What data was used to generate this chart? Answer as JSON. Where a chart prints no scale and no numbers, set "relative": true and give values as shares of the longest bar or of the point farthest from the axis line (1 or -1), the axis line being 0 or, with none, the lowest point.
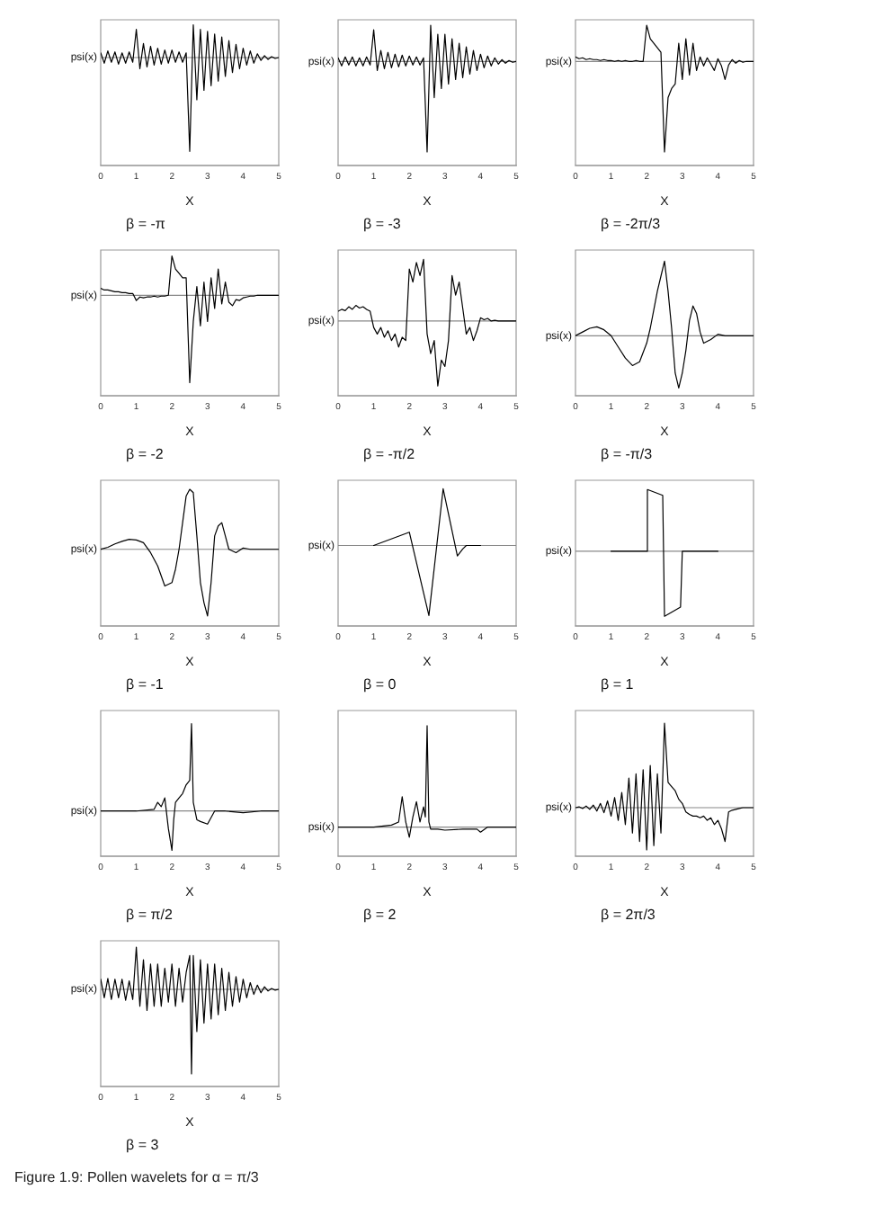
{
  "chart_data": [
    {
      "type": "line",
      "title": "β = -π",
      "xlabel": "X",
      "ylabel": "psi(x)",
      "relative": true,
      "xlim": [
        0,
        5
      ],
      "xticks": [
        0,
        1,
        2,
        3,
        4,
        5
      ],
      "color": "#000000",
      "x": [
        0,
        0.1,
        0.2,
        0.3,
        0.4,
        0.5,
        0.6,
        0.7,
        0.8,
        0.9,
        1,
        1.1,
        1.2,
        1.3,
        1.4,
        1.5,
        1.6,
        1.7,
        1.8,
        1.9,
        2,
        2.1,
        2.2,
        2.3,
        2.4,
        2.5,
        2.6,
        2.7,
        2.8,
        2.9,
        3,
        3.1,
        3.2,
        3.3,
        3.4,
        3.5,
        3.6,
        3.7,
        3.8,
        3.9,
        4,
        4.1,
        4.2,
        4.3,
        4.4,
        4.5,
        4.6,
        4.7,
        4.8,
        4.9,
        5
      ],
      "values": [
        0.05,
        -0.06,
        0.07,
        -0.05,
        0.06,
        -0.07,
        0.05,
        -0.06,
        0.06,
        -0.05,
        0.3,
        -0.12,
        0.15,
        -0.1,
        0.12,
        -0.08,
        0.1,
        -0.07,
        0.08,
        -0.06,
        0.08,
        -0.05,
        0.06,
        -0.05,
        0.05,
        -1,
        0.35,
        -0.45,
        0.3,
        -0.35,
        0.28,
        -0.3,
        0.25,
        -0.25,
        0.22,
        -0.2,
        0.18,
        -0.16,
        0.14,
        -0.12,
        0.1,
        -0.08,
        0.07,
        -0.06,
        0.04,
        -0.03,
        0.02,
        -0.02,
        0.01,
        -0.01,
        0
      ]
    },
    {
      "type": "line",
      "title": "β = -3",
      "xlabel": "X",
      "ylabel": "psi(x)",
      "relative": true,
      "xlim": [
        0,
        5
      ],
      "xticks": [
        0,
        1,
        2,
        3,
        4,
        5
      ],
      "color": "#000000",
      "x": [
        0,
        0.1,
        0.2,
        0.3,
        0.4,
        0.5,
        0.6,
        0.7,
        0.8,
        0.9,
        1,
        1.1,
        1.2,
        1.3,
        1.4,
        1.5,
        1.6,
        1.7,
        1.8,
        1.9,
        2,
        2.1,
        2.2,
        2.3,
        2.4,
        2.5,
        2.6,
        2.7,
        2.8,
        2.9,
        3,
        3.1,
        3.2,
        3.3,
        3.4,
        3.5,
        3.6,
        3.7,
        3.8,
        3.9,
        4,
        4.1,
        4.2,
        4.3,
        4.4,
        4.5,
        4.6,
        4.7,
        4.8,
        4.9,
        5
      ],
      "values": [
        0.04,
        -0.05,
        0.05,
        -0.04,
        0.05,
        -0.05,
        0.04,
        -0.05,
        0.05,
        -0.04,
        0.35,
        -0.1,
        0.12,
        -0.08,
        0.1,
        -0.07,
        0.08,
        -0.06,
        0.07,
        -0.05,
        0.06,
        -0.04,
        0.05,
        -0.04,
        0.04,
        -1,
        0.4,
        -0.4,
        0.3,
        -0.3,
        0.3,
        -0.25,
        0.25,
        -0.2,
        0.2,
        -0.18,
        0.16,
        -0.14,
        0.12,
        -0.1,
        0.08,
        -0.07,
        0.06,
        -0.05,
        0.04,
        -0.03,
        0.02,
        -0.02,
        0.01,
        -0.01,
        0
      ]
    },
    {
      "type": "line",
      "title": "β = -2π/3",
      "xlabel": "X",
      "ylabel": "psi(x)",
      "relative": true,
      "xlim": [
        0,
        5
      ],
      "xticks": [
        0,
        1,
        2,
        3,
        4,
        5
      ],
      "color": "#000000",
      "x": [
        0,
        0.1,
        0.2,
        0.3,
        0.4,
        0.5,
        0.6,
        0.7,
        0.8,
        0.9,
        1,
        1.1,
        1.2,
        1.3,
        1.4,
        1.5,
        1.6,
        1.7,
        1.8,
        1.9,
        2,
        2.1,
        2.2,
        2.3,
        2.4,
        2.5,
        2.6,
        2.7,
        2.8,
        2.9,
        3,
        3.1,
        3.2,
        3.3,
        3.4,
        3.5,
        3.6,
        3.7,
        3.8,
        3.9,
        4,
        4.1,
        4.2,
        4.3,
        4.4,
        4.5,
        4.6,
        4.7,
        4.8,
        4.9,
        5
      ],
      "values": [
        0.05,
        0.03,
        0.04,
        0.02,
        0.03,
        0.02,
        0.02,
        0.01,
        0.02,
        0.01,
        0.01,
        0,
        0.01,
        0,
        0.01,
        0,
        0,
        0.01,
        0,
        0,
        0.4,
        0.25,
        0.2,
        0.15,
        0.1,
        -1,
        -0.4,
        -0.3,
        -0.25,
        0.2,
        -0.2,
        0.25,
        -0.15,
        0.2,
        -0.1,
        0.05,
        -0.05,
        0.04,
        -0.03,
        -0.1,
        0.03,
        -0.05,
        -0.2,
        -0.04,
        0.02,
        -0.02,
        0.01,
        -0.01,
        0,
        0,
        0
      ]
    },
    {
      "type": "line",
      "title": "β = -2",
      "xlabel": "X",
      "ylabel": "psi(x)",
      "relative": true,
      "xlim": [
        0,
        5
      ],
      "xticks": [
        0,
        1,
        2,
        3,
        4,
        5
      ],
      "color": "#000000",
      "x": [
        0,
        0.1,
        0.2,
        0.3,
        0.4,
        0.5,
        0.6,
        0.7,
        0.8,
        0.9,
        1,
        1.1,
        1.2,
        1.3,
        1.4,
        1.5,
        1.6,
        1.7,
        1.8,
        1.9,
        2,
        2.1,
        2.2,
        2.3,
        2.4,
        2.5,
        2.6,
        2.7,
        2.8,
        2.9,
        3,
        3.1,
        3.2,
        3.3,
        3.4,
        3.5,
        3.6,
        3.7,
        3.8,
        3.9,
        4,
        4.1,
        4.2,
        4.3,
        4.4,
        4.5,
        4.6,
        4.7,
        4.8,
        4.9,
        5
      ],
      "values": [
        0.08,
        0.06,
        0.06,
        0.05,
        0.04,
        0.04,
        0.03,
        0.03,
        0.02,
        0.02,
        -0.06,
        -0.02,
        -0.03,
        -0.02,
        -0.02,
        -0.01,
        -0.02,
        -0.01,
        -0.01,
        0,
        0.45,
        0.3,
        0.25,
        0.2,
        0.2,
        -1,
        -0.3,
        0.1,
        -0.35,
        0.15,
        -0.3,
        0.2,
        -0.15,
        0.3,
        -0.1,
        0.15,
        -0.08,
        -0.12,
        -0.05,
        -0.06,
        -0.03,
        -0.02,
        -0.01,
        -0.01,
        0,
        0,
        0,
        0,
        0,
        0,
        0
      ]
    },
    {
      "type": "line",
      "title": "β = -π/2",
      "xlabel": "X",
      "ylabel": "psi(x)",
      "relative": true,
      "xlim": [
        0,
        5
      ],
      "xticks": [
        0,
        1,
        2,
        3,
        4,
        5
      ],
      "color": "#000000",
      "x": [
        0,
        0.1,
        0.2,
        0.3,
        0.4,
        0.5,
        0.6,
        0.7,
        0.8,
        0.9,
        1,
        1.1,
        1.2,
        1.3,
        1.4,
        1.5,
        1.6,
        1.7,
        1.8,
        1.9,
        2,
        2.1,
        2.2,
        2.3,
        2.4,
        2.5,
        2.6,
        2.7,
        2.8,
        2.9,
        3,
        3.1,
        3.2,
        3.3,
        3.4,
        3.5,
        3.6,
        3.7,
        3.8,
        3.9,
        4,
        4.1,
        4.2,
        4.3,
        4.4,
        4.5,
        4.6,
        4.7,
        4.8,
        4.9,
        5
      ],
      "values": [
        0.15,
        0.18,
        0.16,
        0.22,
        0.18,
        0.24,
        0.2,
        0.22,
        0.18,
        0.15,
        -0.1,
        -0.2,
        -0.1,
        -0.25,
        -0.15,
        -0.3,
        -0.2,
        -0.4,
        -0.25,
        -0.3,
        0.8,
        0.6,
        0.9,
        0.7,
        0.95,
        -0.2,
        -0.5,
        -0.3,
        -1,
        -0.6,
        -0.7,
        -0.3,
        0.7,
        0.4,
        0.6,
        0.2,
        -0.2,
        -0.1,
        -0.3,
        -0.15,
        0.05,
        0.02,
        0.04,
        0,
        0.01,
        0,
        0,
        0,
        0,
        0,
        0
      ]
    },
    {
      "type": "line",
      "title": "β = -π/3",
      "xlabel": "X",
      "ylabel": "psi(x)",
      "relative": true,
      "xlim": [
        0,
        5
      ],
      "xticks": [
        0,
        1,
        2,
        3,
        4,
        5
      ],
      "color": "#000000",
      "x": [
        0,
        0.2,
        0.4,
        0.6,
        0.8,
        1,
        1.2,
        1.4,
        1.6,
        1.8,
        2,
        2.1,
        2.2,
        2.3,
        2.4,
        2.5,
        2.6,
        2.7,
        2.8,
        2.9,
        3,
        3.1,
        3.2,
        3.3,
        3.4,
        3.5,
        3.6,
        3.8,
        4,
        4.2,
        4.5,
        5
      ],
      "values": [
        0,
        0.05,
        0.1,
        0.12,
        0.08,
        0,
        -0.15,
        -0.3,
        -0.4,
        -0.35,
        -0.1,
        0.1,
        0.35,
        0.6,
        0.8,
        1,
        0.6,
        0.1,
        -0.5,
        -0.7,
        -0.5,
        -0.2,
        0.2,
        0.4,
        0.3,
        0.05,
        -0.1,
        -0.05,
        0.02,
        0,
        0,
        0
      ]
    },
    {
      "type": "line",
      "title": "β = -1",
      "xlabel": "X",
      "ylabel": "psi(x)",
      "relative": true,
      "xlim": [
        0,
        5
      ],
      "xticks": [
        0,
        1,
        2,
        3,
        4,
        5
      ],
      "color": "#000000",
      "x": [
        0,
        0.2,
        0.4,
        0.6,
        0.8,
        1,
        1.2,
        1.4,
        1.6,
        1.8,
        2,
        2.1,
        2.2,
        2.3,
        2.4,
        2.5,
        2.6,
        2.7,
        2.8,
        2.9,
        3,
        3.1,
        3.2,
        3.3,
        3.4,
        3.5,
        3.6,
        3.8,
        4,
        4.2,
        4.5,
        5
      ],
      "values": [
        0,
        0.03,
        0.08,
        0.12,
        0.15,
        0.14,
        0.1,
        -0.05,
        -0.25,
        -0.55,
        -0.5,
        -0.3,
        0,
        0.4,
        0.8,
        0.9,
        0.85,
        0.2,
        -0.5,
        -0.8,
        -1,
        -0.5,
        0.2,
        0.35,
        0.4,
        0.2,
        0,
        -0.05,
        0.02,
        0,
        0,
        0
      ]
    },
    {
      "type": "line",
      "title": "β = 0",
      "xlabel": "X",
      "ylabel": "psi(x)",
      "relative": true,
      "xlim": [
        0,
        5
      ],
      "xticks": [
        0,
        1,
        2,
        3,
        4,
        5
      ],
      "color": "#000000",
      "x": [
        1,
        2,
        2.55,
        2.95,
        3.35,
        3.5,
        3.6,
        4
      ],
      "values": [
        0,
        0.19,
        -1,
        0.81,
        -0.15,
        -0.05,
        0,
        0
      ]
    },
    {
      "type": "line",
      "title": "β = 1",
      "xlabel": "X",
      "ylabel": "psi(x)",
      "relative": true,
      "xlim": [
        0,
        5
      ],
      "xticks": [
        0,
        1,
        2,
        3,
        4,
        5
      ],
      "color": "#000000",
      "x": [
        1,
        2,
        2.02,
        2.45,
        2.5,
        2.95,
        3,
        4
      ],
      "values": [
        0,
        0,
        0.95,
        0.86,
        -1,
        -0.86,
        0,
        0
      ]
    },
    {
      "type": "line",
      "title": "β = π/2",
      "xlabel": "X",
      "ylabel": "psi(x)",
      "relative": true,
      "xlim": [
        0,
        5
      ],
      "xticks": [
        0,
        1,
        2,
        3,
        4,
        5
      ],
      "color": "#000000",
      "x": [
        0,
        1,
        1.5,
        1.6,
        1.7,
        1.8,
        1.9,
        2,
        2.05,
        2.1,
        2.2,
        2.3,
        2.4,
        2.5,
        2.55,
        2.6,
        2.7,
        2.8,
        3,
        3.2,
        3.5,
        4,
        4.5,
        5
      ],
      "values": [
        0,
        0,
        0.02,
        0.1,
        0.05,
        0.15,
        -0.2,
        -0.45,
        -0.1,
        0.1,
        0.15,
        0.2,
        0.3,
        0.35,
        1,
        0.1,
        -0.1,
        -0.12,
        -0.15,
        0,
        0,
        -0.02,
        0,
        0
      ]
    },
    {
      "type": "line",
      "title": "β = 2",
      "xlabel": "X",
      "ylabel": "psi(x)",
      "relative": true,
      "xlim": [
        0,
        5
      ],
      "xticks": [
        0,
        1,
        2,
        3,
        4,
        5
      ],
      "color": "#000000",
      "x": [
        0,
        1,
        1.5,
        1.7,
        1.8,
        1.9,
        2,
        2.1,
        2.2,
        2.3,
        2.4,
        2.45,
        2.5,
        2.55,
        2.6,
        2.8,
        3,
        3.5,
        3.9,
        4,
        4.2,
        5
      ],
      "values": [
        0,
        0,
        0.02,
        0.05,
        0.3,
        0.05,
        -0.1,
        0.1,
        0.25,
        0.05,
        0.2,
        0.1,
        1,
        0.05,
        -0.02,
        -0.02,
        -0.03,
        -0.02,
        -0.02,
        -0.05,
        0,
        0
      ]
    },
    {
      "type": "line",
      "title": "β = 2π/3",
      "xlabel": "X",
      "ylabel": "psi(x)",
      "relative": true,
      "xlim": [
        0,
        5
      ],
      "xticks": [
        0,
        1,
        2,
        3,
        4,
        5
      ],
      "color": "#000000",
      "x": [
        0,
        0.1,
        0.2,
        0.3,
        0.4,
        0.5,
        0.6,
        0.7,
        0.8,
        0.9,
        1,
        1.1,
        1.2,
        1.3,
        1.4,
        1.5,
        1.6,
        1.7,
        1.8,
        1.9,
        2,
        2.1,
        2.2,
        2.3,
        2.4,
        2.5,
        2.6,
        2.7,
        2.8,
        2.9,
        3,
        3.1,
        3.2,
        3.3,
        3.4,
        3.5,
        3.6,
        3.7,
        3.8,
        3.9,
        4,
        4.1,
        4.2,
        4.3,
        4.4,
        4.5,
        4.6,
        4.7,
        4.8,
        4.9,
        5
      ],
      "values": [
        0,
        0.01,
        -0.01,
        0.02,
        -0.02,
        0.03,
        -0.04,
        0.05,
        -0.06,
        0.08,
        -0.1,
        0.12,
        -0.15,
        0.18,
        -0.2,
        0.35,
        -0.3,
        0.4,
        -0.4,
        0.45,
        -0.5,
        0.5,
        -0.45,
        0.4,
        -0.3,
        1,
        0.3,
        0.25,
        0.2,
        0.1,
        0.05,
        -0.05,
        -0.08,
        -0.1,
        -0.1,
        -0.12,
        -0.1,
        -0.15,
        -0.12,
        -0.2,
        -0.15,
        -0.25,
        -0.4,
        -0.05,
        -0.03,
        -0.02,
        -0.01,
        0,
        0,
        0,
        0
      ]
    },
    {
      "type": "line",
      "title": "β = 3",
      "xlabel": "X",
      "ylabel": "psi(x)",
      "relative": true,
      "xlim": [
        0,
        5
      ],
      "xticks": [
        0,
        1,
        2,
        3,
        4,
        5
      ],
      "color": "#000000",
      "annotations": [
        "Figure 1.9:  Pollen wavelets for α = π/3"
      ],
      "x": [
        0,
        0.1,
        0.2,
        0.3,
        0.4,
        0.5,
        0.6,
        0.7,
        0.8,
        0.9,
        1,
        1.1,
        1.2,
        1.3,
        1.4,
        1.5,
        1.6,
        1.7,
        1.8,
        1.9,
        2,
        2.1,
        2.2,
        2.3,
        2.4,
        2.5,
        2.55,
        2.6,
        2.7,
        2.8,
        2.9,
        3,
        3.1,
        3.2,
        3.3,
        3.4,
        3.5,
        3.6,
        3.7,
        3.8,
        3.9,
        4,
        4.1,
        4.2,
        4.3,
        4.4,
        4.5,
        4.6,
        4.7,
        4.8,
        4.9,
        5
      ],
      "values": [
        0.12,
        -0.1,
        0.13,
        -0.12,
        0.12,
        -0.1,
        0.12,
        -0.13,
        0.1,
        -0.12,
        0.5,
        -0.2,
        0.35,
        -0.25,
        0.3,
        -0.2,
        0.3,
        -0.2,
        0.25,
        -0.15,
        0.3,
        -0.2,
        0.25,
        -0.15,
        0.2,
        0.4,
        -1,
        0.4,
        -0.5,
        0.35,
        -0.4,
        0.3,
        -0.35,
        0.3,
        -0.3,
        0.25,
        -0.25,
        0.2,
        -0.2,
        0.15,
        -0.15,
        0.12,
        -0.1,
        0.08,
        -0.06,
        0.05,
        -0.04,
        0.03,
        -0.02,
        0.01,
        -0.01,
        0
      ]
    }
  ]
}
